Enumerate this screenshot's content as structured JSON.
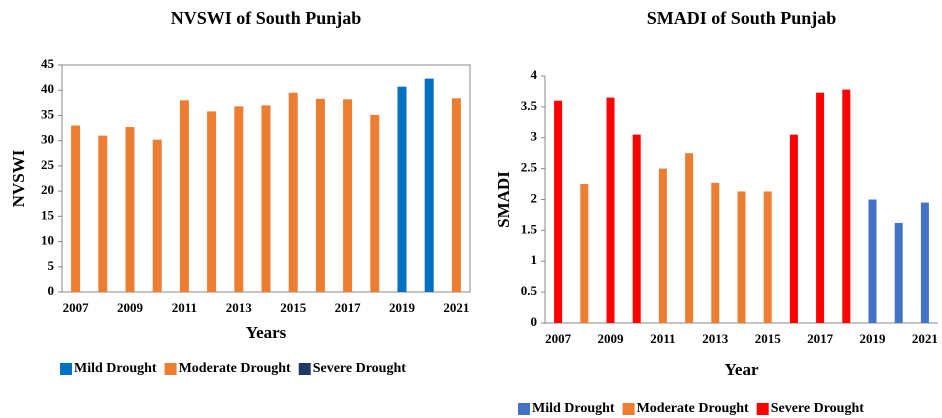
{
  "chart_data": [
    {
      "type": "bar",
      "title": "NVSWI of South Punjab",
      "x_label": "Years",
      "y_label": "NVSWI",
      "categories": [
        "2007",
        null,
        "2009",
        null,
        "2011",
        null,
        "2013",
        null,
        "2015",
        null,
        "2017",
        null,
        "2019",
        null,
        "2021"
      ],
      "series": [
        {
          "name": "Mild Drought",
          "color": "#0070c0",
          "values": [
            null,
            null,
            null,
            null,
            null,
            null,
            null,
            null,
            null,
            null,
            null,
            null,
            40.7,
            42.3,
            null
          ]
        },
        {
          "name": "Moderate Drought",
          "color": "#ed7d31",
          "values": [
            33,
            31,
            32.7,
            30.2,
            38,
            35.8,
            36.8,
            37,
            39.5,
            38.3,
            38.2,
            35.1,
            null,
            null,
            38.4
          ]
        },
        {
          "name": "Severe Drought",
          "color": "#1f3864",
          "values": [
            null,
            null,
            null,
            null,
            null,
            null,
            null,
            null,
            null,
            null,
            null,
            null,
            null,
            null,
            null
          ]
        }
      ],
      "ylim": [
        0,
        45
      ],
      "yticks": [
        0,
        5,
        10,
        15,
        20,
        25,
        30,
        35,
        40,
        45
      ]
    },
    {
      "type": "bar",
      "title": "SMADI of South Punjab",
      "x_label": "Year",
      "y_label": "SMADI",
      "categories": [
        "2007",
        null,
        "2009",
        null,
        "2011",
        null,
        "2013",
        null,
        "2015",
        null,
        "2017",
        null,
        "2019",
        null,
        "2021"
      ],
      "series": [
        {
          "name": "Mild Drought",
          "color": "#4472c4",
          "values": [
            null,
            null,
            null,
            null,
            null,
            null,
            null,
            null,
            null,
            null,
            null,
            null,
            2.0,
            1.62,
            1.95
          ]
        },
        {
          "name": "Moderate Drought",
          "color": "#ed7d31",
          "values": [
            null,
            2.25,
            null,
            null,
            2.5,
            2.75,
            2.27,
            2.13,
            2.13,
            null,
            null,
            null,
            null,
            null,
            null
          ]
        },
        {
          "name": "Severe Drought",
          "color": "#ff0000",
          "values": [
            3.6,
            null,
            3.65,
            3.05,
            null,
            null,
            null,
            null,
            null,
            3.05,
            3.73,
            3.78,
            null,
            null,
            null
          ]
        }
      ],
      "ylim": [
        0,
        4
      ],
      "yticks": [
        0,
        0.5,
        1,
        1.5,
        2,
        2.5,
        3,
        3.5,
        4
      ]
    }
  ]
}
